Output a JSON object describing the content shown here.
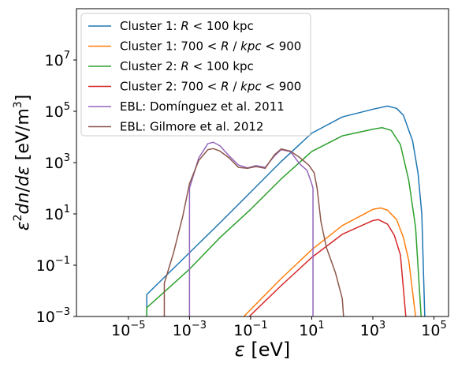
{
  "chart_data": {
    "type": "line",
    "xscale": "log",
    "yscale": "log",
    "xlim": [
      2e-07,
      300000.0
    ],
    "ylim": [
      0.001,
      1000000000.0
    ],
    "xlabel": "ε [eV]",
    "ylabel": "ε²dn/dε [eV/m³]",
    "grid": false,
    "legend_position": "top-left",
    "x_ticks": [
      {
        "value": 1e-05,
        "base": "10",
        "exp": "−5"
      },
      {
        "value": 0.001,
        "base": "10",
        "exp": "−3"
      },
      {
        "value": 0.1,
        "base": "10",
        "exp": "−1"
      },
      {
        "value": 10.0,
        "base": "10",
        "exp": "1"
      },
      {
        "value": 1000.0,
        "base": "10",
        "exp": "3"
      },
      {
        "value": 100000.0,
        "base": "10",
        "exp": "5"
      }
    ],
    "y_ticks": [
      {
        "value": 0.001,
        "base": "10",
        "exp": "−3"
      },
      {
        "value": 0.1,
        "base": "10",
        "exp": "−1"
      },
      {
        "value": 10.0,
        "base": "10",
        "exp": "1"
      },
      {
        "value": 1000.0,
        "base": "10",
        "exp": "3"
      },
      {
        "value": 100000.0,
        "base": "10",
        "exp": "5"
      },
      {
        "value": 10000000.0,
        "base": "10",
        "exp": "7"
      }
    ],
    "series": [
      {
        "name": "Cluster 1: R < 100 kpc",
        "name_parts": [
          "Cluster 1: ",
          "R",
          " < 100 kpc"
        ],
        "color": "#1f77b4",
        "points": [
          [
            4e-05,
            0.001
          ],
          [
            4e-05,
            0.0072
          ],
          [
            0.01,
            4.5
          ],
          [
            0.1,
            70
          ],
          [
            1,
            1100
          ],
          [
            10,
            14000
          ],
          [
            100,
            60000
          ],
          [
            1000,
            120000
          ],
          [
            3000,
            160000
          ],
          [
            6000,
            130000
          ],
          [
            10000,
            70000
          ],
          [
            20000,
            7000
          ],
          [
            30000,
            400
          ],
          [
            40000,
            10
          ],
          [
            50000,
            0.001
          ]
        ]
      },
      {
        "name": "Cluster 1: 700 < R / kpc < 900",
        "name_parts": [
          "Cluster 1: 700 < ",
          "R",
          " / ",
          "kpc",
          " < 900"
        ],
        "color": "#ff7f0e",
        "points": [
          [
            0.06,
            0.001
          ],
          [
            1,
            0.03
          ],
          [
            10,
            0.4
          ],
          [
            100,
            3.5
          ],
          [
            1000,
            15
          ],
          [
            1800,
            17
          ],
          [
            3000,
            14
          ],
          [
            6000,
            6
          ],
          [
            10000,
            1.2
          ],
          [
            15000,
            0.15
          ],
          [
            25000,
            0.001
          ]
        ]
      },
      {
        "name": "Cluster 2: R < 100 kpc",
        "name_parts": [
          "Cluster 2: ",
          "R",
          " < 100 kpc"
        ],
        "color": "#2ca02c",
        "points": [
          [
            4e-05,
            0.001
          ],
          [
            4e-05,
            0.0022
          ],
          [
            0.001,
            0.07
          ],
          [
            0.01,
            1.2
          ],
          [
            0.1,
            15
          ],
          [
            1,
            230
          ],
          [
            10,
            2700
          ],
          [
            100,
            11000
          ],
          [
            1000,
            20000
          ],
          [
            2000,
            23000
          ],
          [
            4000,
            18000
          ],
          [
            8000,
            5000
          ],
          [
            15000,
            200
          ],
          [
            25000,
            3
          ],
          [
            38000,
            0.001
          ]
        ]
      },
      {
        "name": "Cluster 2: 700 < R / kpc < 900",
        "name_parts": [
          "Cluster 2: 700 < ",
          "R",
          " / ",
          "kpc",
          " < 900"
        ],
        "color": "#d62728",
        "points": [
          [
            0.09,
            0.001
          ],
          [
            1,
            0.016
          ],
          [
            10,
            0.2
          ],
          [
            100,
            1.6
          ],
          [
            1000,
            5.5
          ],
          [
            1500,
            6
          ],
          [
            3000,
            4
          ],
          [
            5000,
            1.5
          ],
          [
            8000,
            0.25
          ],
          [
            12000,
            0.001
          ]
        ]
      },
      {
        "name": "EBL: Domínguez et al. 2011",
        "name_parts": [
          "EBL: Domínguez et al. 2011"
        ],
        "color": "#9467bd",
        "points": [
          [
            0.001,
            0.001
          ],
          [
            0.001,
            100
          ],
          [
            0.002,
            1500
          ],
          [
            0.004,
            5500
          ],
          [
            0.006,
            6200
          ],
          [
            0.01,
            4500
          ],
          [
            0.02,
            1800
          ],
          [
            0.04,
            800
          ],
          [
            0.08,
            620
          ],
          [
            0.15,
            760
          ],
          [
            0.3,
            650
          ],
          [
            0.6,
            1800
          ],
          [
            1,
            3200
          ],
          [
            2,
            2700
          ],
          [
            4,
            900
          ],
          [
            7,
            500
          ],
          [
            10,
            150
          ],
          [
            11,
            100
          ],
          [
            11,
            0.001
          ]
        ]
      },
      {
        "name": "EBL: Gilmore et al. 2012",
        "name_parts": [
          "EBL: Gilmore et al. 2012"
        ],
        "color": "#8c564b",
        "points": [
          [
            0.00015,
            0.001
          ],
          [
            0.00015,
            0.02
          ],
          [
            0.0003,
            0.3
          ],
          [
            0.0006,
            8
          ],
          [
            0.001,
            150
          ],
          [
            0.002,
            1200
          ],
          [
            0.004,
            3200
          ],
          [
            0.006,
            3500
          ],
          [
            0.01,
            2800
          ],
          [
            0.02,
            1500
          ],
          [
            0.04,
            650
          ],
          [
            0.08,
            600
          ],
          [
            0.15,
            700
          ],
          [
            0.3,
            600
          ],
          [
            0.6,
            2000
          ],
          [
            1,
            3400
          ],
          [
            2,
            2800
          ],
          [
            4,
            1600
          ],
          [
            8,
            800
          ],
          [
            12,
            400
          ],
          [
            15,
            100
          ],
          [
            20,
            5
          ],
          [
            30,
            0.5
          ],
          [
            60,
            0.05
          ],
          [
            100,
            0.005
          ],
          [
            110,
            0.001
          ]
        ]
      }
    ]
  }
}
